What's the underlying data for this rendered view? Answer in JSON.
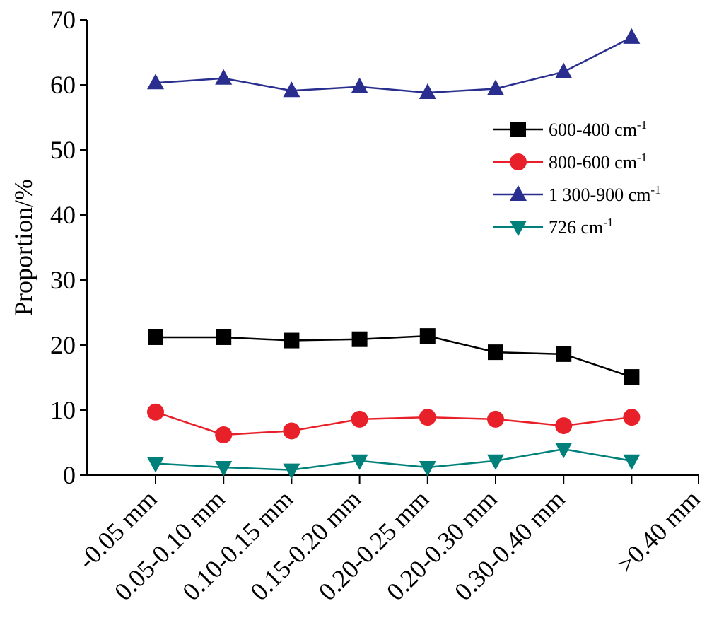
{
  "chart_data": {
    "type": "line",
    "title": "",
    "xlabel": "",
    "ylabel": "Proportion/%",
    "ylim": [
      0,
      70
    ],
    "yticks": [
      "0",
      "10",
      "20",
      "30",
      "40",
      "50",
      "60",
      "70"
    ],
    "categories": [
      "-0.05 mm",
      "0.05-0.10 mm",
      "0.10-0.15 mm",
      "0.15-0.20 mm",
      "0.20-0.25 mm",
      "0.20-0.30 mm",
      "0.30-0.40 mm",
      ">0.40 mm"
    ],
    "grid": false,
    "legend_position": "upper-right",
    "series": [
      {
        "name": "600-400 cm",
        "superscript": "-1",
        "color": "#000000",
        "marker": "square",
        "values": [
          21.2,
          21.2,
          20.7,
          20.9,
          21.4,
          18.9,
          18.6,
          15.1
        ]
      },
      {
        "name": "800-600 cm",
        "superscript": "-1",
        "color": "#e8202a",
        "marker": "circle",
        "values": [
          9.7,
          6.2,
          6.8,
          8.6,
          8.9,
          8.6,
          7.6,
          8.9
        ]
      },
      {
        "name": "1 300-900 cm",
        "superscript": "-1",
        "color": "#2a2f8f",
        "marker": "triangle-up",
        "values": [
          60.3,
          61.0,
          59.1,
          59.7,
          58.8,
          59.4,
          62.0,
          67.3
        ]
      },
      {
        "name": "726 cm",
        "superscript": "-1",
        "color": "#00807a",
        "marker": "triangle-down",
        "values": [
          1.8,
          1.2,
          0.8,
          2.2,
          1.2,
          2.2,
          4.0,
          2.2
        ]
      }
    ]
  }
}
